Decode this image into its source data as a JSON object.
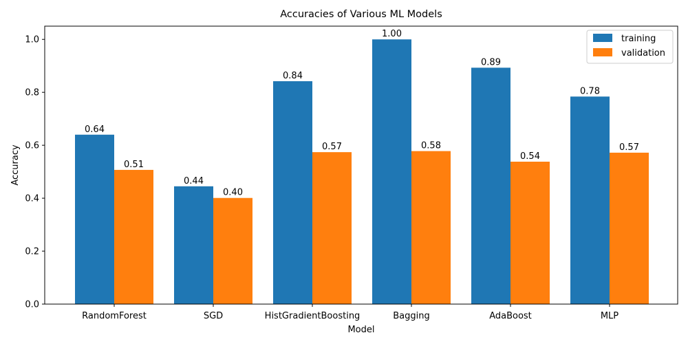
{
  "chart_data": {
    "type": "bar",
    "title": "Accuracies of Various ML Models",
    "xlabel": "Model",
    "ylabel": "Accuracy",
    "categories": [
      "RandomForest",
      "SGD",
      "HistGradientBoosting",
      "Bagging",
      "AdaBoost",
      "MLP"
    ],
    "series": [
      {
        "name": "training",
        "color": "#1f77b4",
        "values": [
          0.64,
          0.445,
          0.842,
          1.0,
          0.893,
          0.784
        ],
        "labels": [
          "0.64",
          "0.44",
          "0.84",
          "1.00",
          "0.89",
          "0.78"
        ]
      },
      {
        "name": "validation",
        "color": "#ff7f0e",
        "values": [
          0.507,
          0.401,
          0.574,
          0.578,
          0.538,
          0.572
        ],
        "labels": [
          "0.51",
          "0.40",
          "0.57",
          "0.58",
          "0.54",
          "0.57"
        ]
      }
    ],
    "ylim": [
      0,
      1.05
    ],
    "yticks": [
      "0.0",
      "0.2",
      "0.4",
      "0.6",
      "0.8",
      "1.0"
    ],
    "grid": false,
    "legend_position": "top-right"
  }
}
